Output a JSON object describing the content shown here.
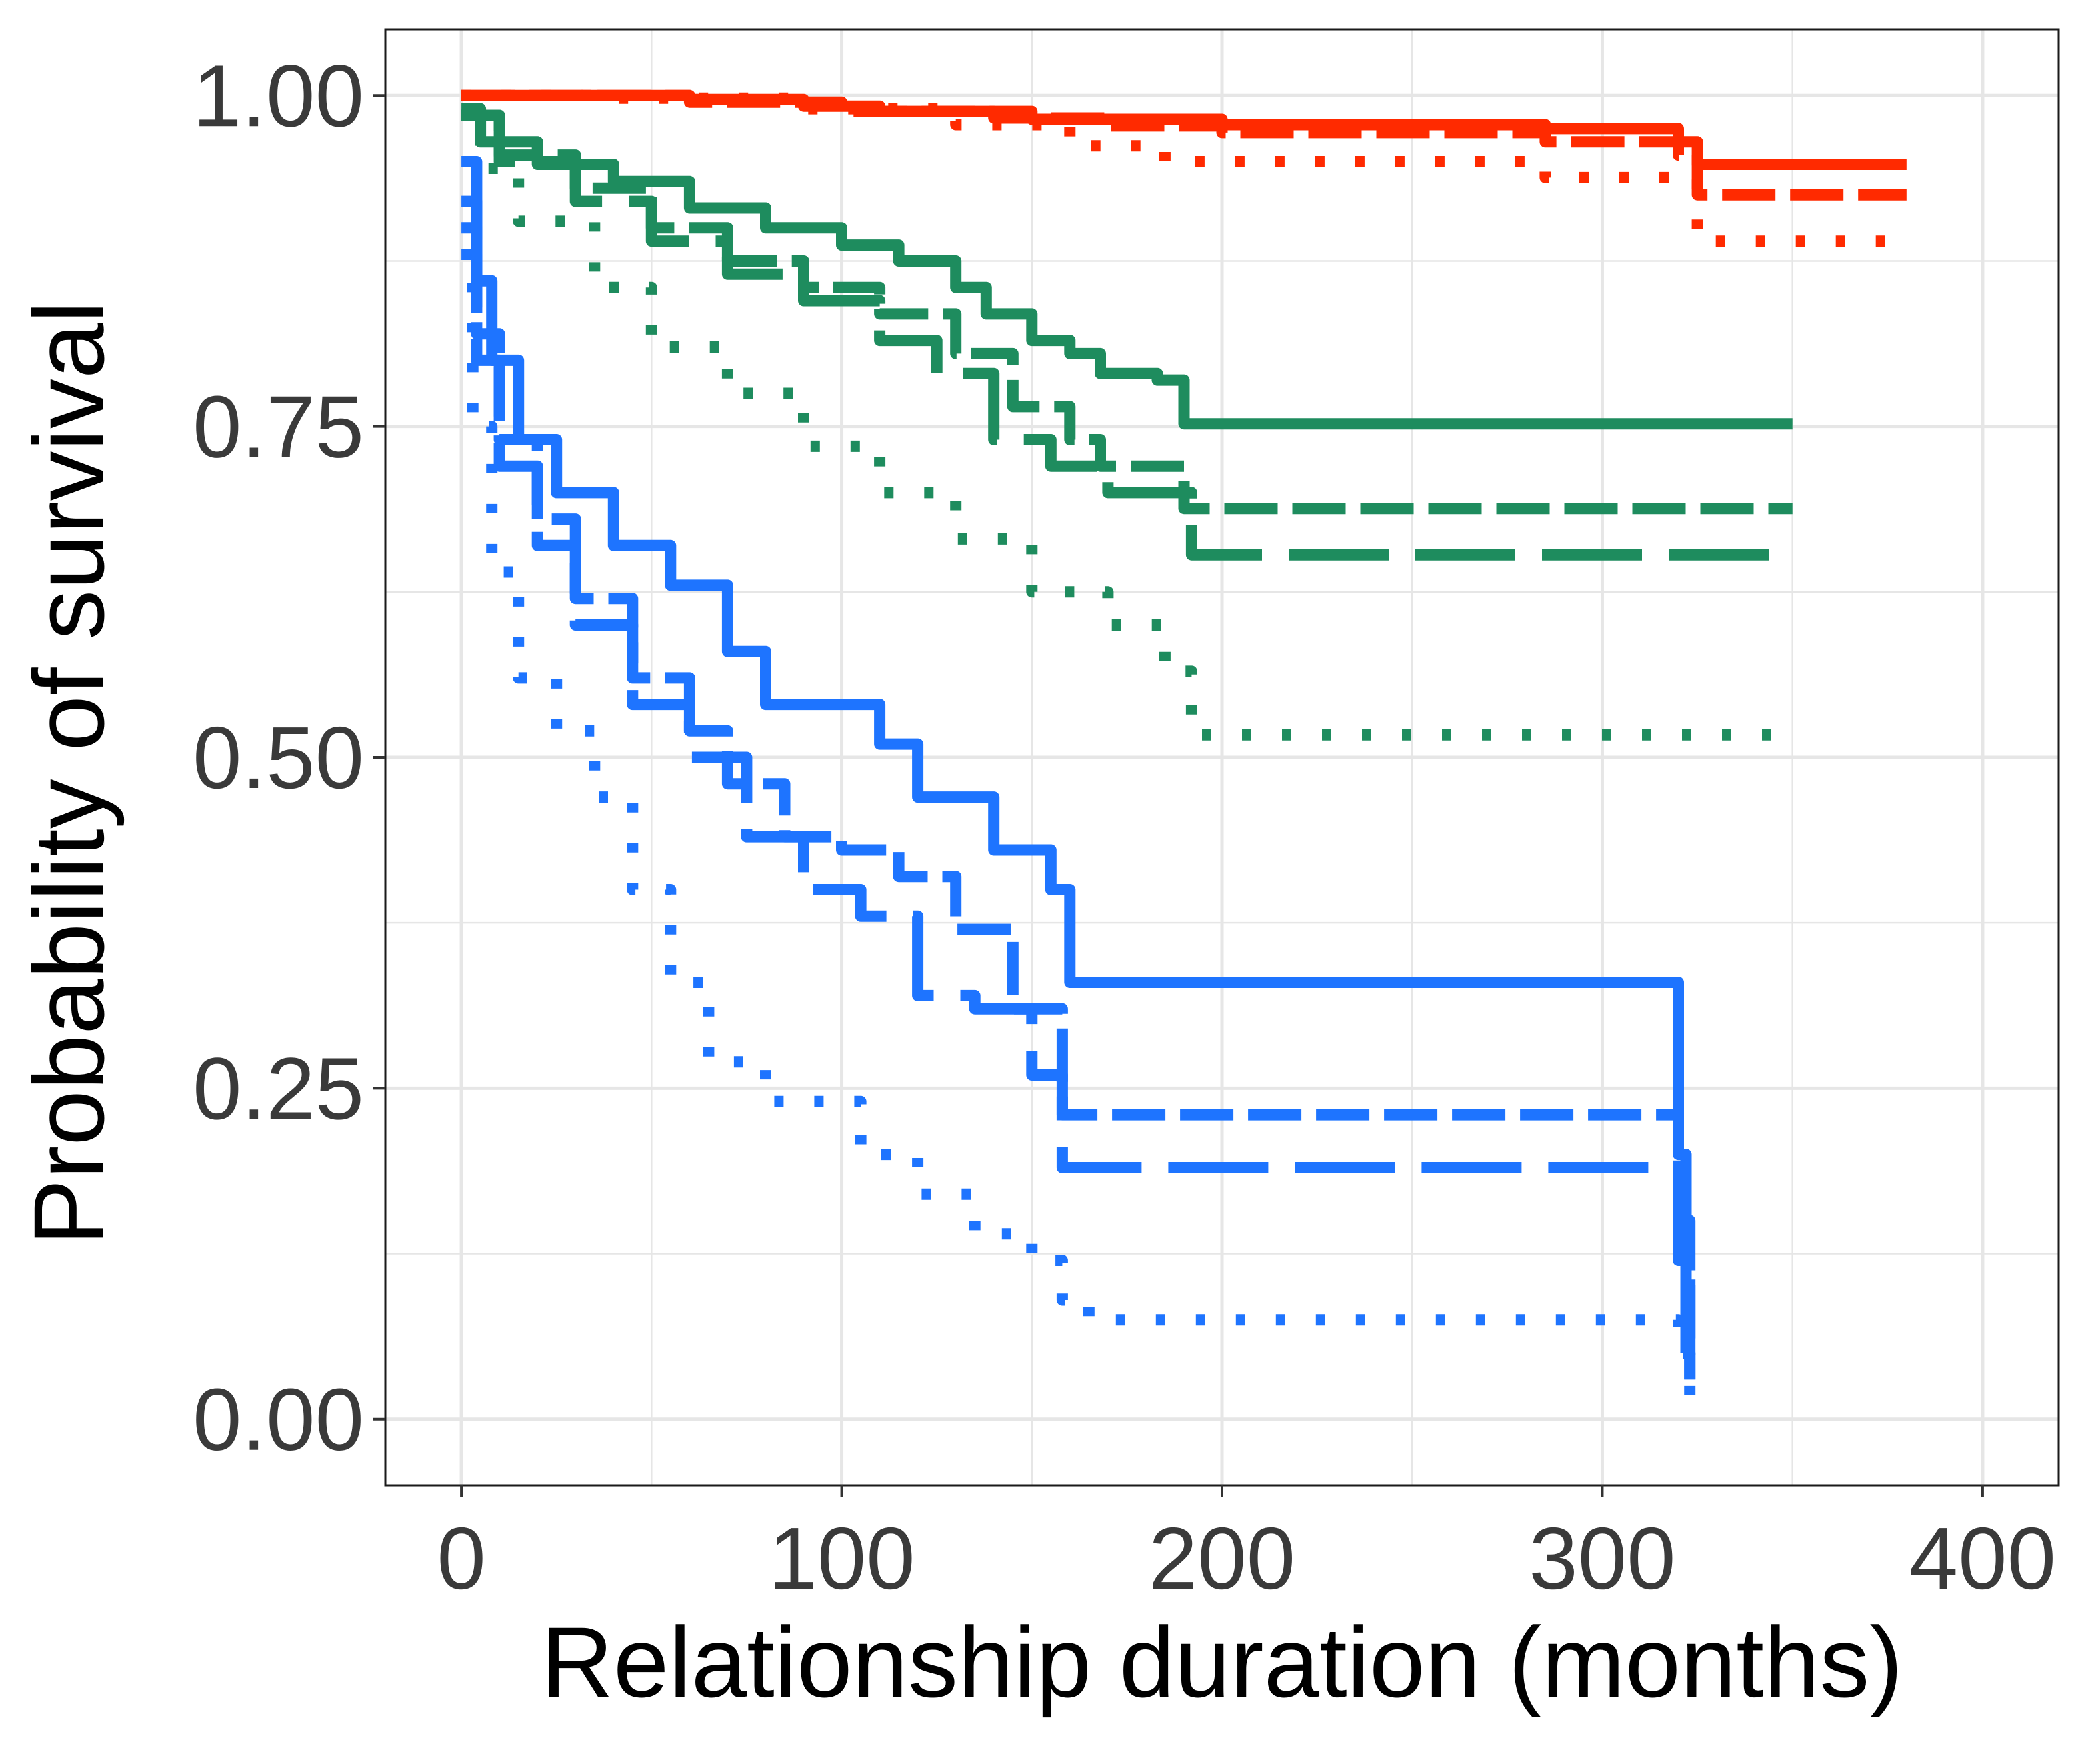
{
  "chart_data": {
    "type": "line",
    "step": true,
    "title": "",
    "xlabel": "Relationship duration (months)",
    "ylabel": "Probability of survival",
    "xlim": [
      -20,
      420
    ],
    "ylim": [
      -0.05,
      1.05
    ],
    "xticks": [
      0,
      100,
      200,
      300,
      400
    ],
    "yticks": [
      0.0,
      0.25,
      0.5,
      0.75,
      1.0
    ],
    "xtick_labels": [
      "0",
      "100",
      "200",
      "300",
      "400"
    ],
    "ytick_labels": [
      "0.00",
      "0.25",
      "0.50",
      "0.75",
      "1.00"
    ],
    "grid": true,
    "legend": "none",
    "colors": {
      "red": "#FF2A00",
      "green": "#1E8C5E",
      "blue": "#1E74FF",
      "grid": "#E6E6E6",
      "panel_border": "#1a1a1a"
    },
    "series": [
      {
        "name": "red-solid",
        "color": "red",
        "dash": "solid",
        "x": [
          0,
          60,
          90,
          110,
          150,
          200,
          285,
          320,
          325,
          380
        ],
        "y": [
          1.0,
          0.997,
          0.992,
          0.988,
          0.982,
          0.978,
          0.975,
          0.965,
          0.948,
          0.948
        ]
      },
      {
        "name": "red-dashed",
        "color": "red",
        "dash": "dashed",
        "x": [
          0,
          60,
          100,
          140,
          170,
          200,
          285,
          320,
          325,
          380
        ],
        "y": [
          1.0,
          0.995,
          0.988,
          0.983,
          0.977,
          0.972,
          0.965,
          0.955,
          0.925,
          0.925
        ]
      },
      {
        "name": "red-dotted",
        "color": "red",
        "dash": "dotted",
        "x": [
          0,
          40,
          90,
          130,
          160,
          185,
          285,
          325,
          380
        ],
        "y": [
          1.0,
          0.998,
          0.99,
          0.978,
          0.962,
          0.95,
          0.938,
          0.89,
          0.89
        ]
      },
      {
        "name": "green-solid",
        "color": "green",
        "dash": "solid",
        "x": [
          0,
          5,
          20,
          40,
          60,
          80,
          100,
          115,
          130,
          138,
          150,
          160,
          168,
          183,
          190,
          350
        ],
        "y": [
          0.99,
          0.965,
          0.948,
          0.935,
          0.915,
          0.9,
          0.887,
          0.875,
          0.855,
          0.835,
          0.815,
          0.805,
          0.79,
          0.785,
          0.752,
          0.752
        ]
      },
      {
        "name": "green-dashed",
        "color": "green",
        "dash": "dashed",
        "x": [
          0,
          10,
          30,
          50,
          70,
          90,
          110,
          130,
          145,
          160,
          168,
          180,
          190,
          350
        ],
        "y": [
          0.985,
          0.955,
          0.93,
          0.9,
          0.875,
          0.855,
          0.835,
          0.805,
          0.765,
          0.74,
          0.72,
          0.72,
          0.688,
          0.688
        ]
      },
      {
        "name": "green-long-dashed",
        "color": "green",
        "dash": "longdash",
        "x": [
          0,
          10,
          30,
          50,
          70,
          90,
          110,
          125,
          140,
          155,
          170,
          180,
          192,
          350
        ],
        "y": [
          0.985,
          0.95,
          0.92,
          0.89,
          0.865,
          0.845,
          0.815,
          0.79,
          0.74,
          0.72,
          0.7,
          0.7,
          0.653,
          0.653
        ]
      },
      {
        "name": "green-dotted",
        "color": "green",
        "dash": "dotted",
        "x": [
          0,
          5,
          15,
          35,
          50,
          70,
          90,
          110,
          130,
          150,
          170,
          185,
          192,
          350
        ],
        "y": [
          0.985,
          0.945,
          0.905,
          0.855,
          0.81,
          0.775,
          0.735,
          0.7,
          0.665,
          0.625,
          0.6,
          0.565,
          0.517,
          0.517
        ]
      },
      {
        "name": "blue-solid",
        "color": "blue",
        "dash": "solid",
        "x": [
          0,
          4,
          8,
          15,
          25,
          40,
          55,
          70,
          80,
          100,
          110,
          120,
          140,
          155,
          160,
          315,
          320,
          322
        ],
        "y": [
          0.95,
          0.86,
          0.8,
          0.74,
          0.7,
          0.66,
          0.63,
          0.58,
          0.54,
          0.54,
          0.51,
          0.47,
          0.43,
          0.4,
          0.33,
          0.33,
          0.2,
          0.05
        ]
      },
      {
        "name": "blue-dashed",
        "color": "blue",
        "dash": "dashed",
        "x": [
          0,
          4,
          10,
          20,
          30,
          45,
          60,
          70,
          85,
          100,
          115,
          130,
          145,
          158,
          315,
          320,
          323
        ],
        "y": [
          0.92,
          0.82,
          0.74,
          0.68,
          0.62,
          0.56,
          0.52,
          0.48,
          0.44,
          0.43,
          0.41,
          0.37,
          0.31,
          0.23,
          0.23,
          0.15,
          0.03
        ]
      },
      {
        "name": "blue-long-dashed",
        "color": "blue",
        "dash": "longdash",
        "x": [
          0,
          4,
          10,
          20,
          30,
          45,
          60,
          75,
          90,
          105,
          120,
          135,
          150,
          158,
          315,
          320,
          323
        ],
        "y": [
          0.9,
          0.8,
          0.72,
          0.66,
          0.6,
          0.54,
          0.5,
          0.44,
          0.4,
          0.38,
          0.32,
          0.31,
          0.26,
          0.19,
          0.19,
          0.12,
          0.03
        ]
      },
      {
        "name": "blue-dotted",
        "color": "blue",
        "dash": "dotted",
        "x": [
          0,
          3,
          8,
          15,
          25,
          35,
          45,
          55,
          65,
          80,
          95,
          105,
          120,
          135,
          150,
          158,
          165,
          315,
          320,
          323
        ],
        "y": [
          0.88,
          0.75,
          0.64,
          0.56,
          0.52,
          0.47,
          0.4,
          0.33,
          0.27,
          0.24,
          0.24,
          0.2,
          0.17,
          0.14,
          0.12,
          0.09,
          0.075,
          0.075,
          0.05,
          0.01
        ]
      }
    ]
  }
}
